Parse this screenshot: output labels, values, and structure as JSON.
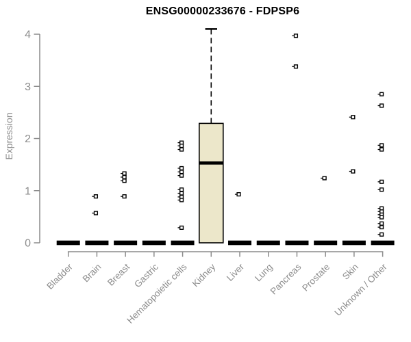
{
  "window": {
    "background": "#ffffff"
  },
  "chart_data": {
    "type": "boxplot",
    "title": "ENSG00000233676 - FDPSP6",
    "xlabel": "",
    "ylabel": "Expression",
    "ylim": [
      0,
      4.12
    ],
    "yticks": [
      0,
      1,
      2,
      3,
      4
    ],
    "grid": false,
    "legend": "none",
    "marker": "open-square",
    "categories": [
      "Bladder",
      "Brain",
      "Breast",
      "Gastric",
      "Hematopoietic cells",
      "Kidney",
      "Liver",
      "Lung",
      "Pancreas",
      "Prostate",
      "Skin",
      "Unknown / Other"
    ],
    "boxes": [
      {
        "category": "Bladder",
        "min": 0,
        "q1": 0,
        "median": 0,
        "q3": 0,
        "max": 0
      },
      {
        "category": "Brain",
        "min": 0,
        "q1": 0,
        "median": 0,
        "q3": 0,
        "max": 0
      },
      {
        "category": "Breast",
        "min": 0,
        "q1": 0,
        "median": 0,
        "q3": 0,
        "max": 0
      },
      {
        "category": "Gastric",
        "min": 0,
        "q1": 0,
        "median": 0,
        "q3": 0,
        "max": 0
      },
      {
        "category": "Hematopoietic cells",
        "min": 0,
        "q1": 0,
        "median": 0,
        "q3": 0,
        "max": 0
      },
      {
        "category": "Kidney",
        "min": 0,
        "q1": 0,
        "median": 1.53,
        "q3": 2.29,
        "max": 4.1
      },
      {
        "category": "Liver",
        "min": 0,
        "q1": 0,
        "median": 0,
        "q3": 0,
        "max": 0
      },
      {
        "category": "Lung",
        "min": 0,
        "q1": 0,
        "median": 0,
        "q3": 0,
        "max": 0
      },
      {
        "category": "Pancreas",
        "min": 0,
        "q1": 0,
        "median": 0,
        "q3": 0,
        "max": 0
      },
      {
        "category": "Prostate",
        "min": 0,
        "q1": 0,
        "median": 0,
        "q3": 0,
        "max": 0
      },
      {
        "category": "Skin",
        "min": 0,
        "q1": 0,
        "median": 0,
        "q3": 0,
        "max": 0
      },
      {
        "category": "Unknown / Other",
        "min": 0,
        "q1": 0,
        "median": 0,
        "q3": 0,
        "max": 0
      }
    ],
    "points": [
      {
        "category": "Brain",
        "values": [
          0.89,
          0.57
        ]
      },
      {
        "category": "Breast",
        "values": [
          1.33,
          1.26,
          1.19,
          0.89
        ]
      },
      {
        "category": "Hematopoietic cells",
        "values": [
          1.92,
          1.86,
          1.79,
          1.43,
          1.36,
          1.29,
          1.02,
          0.95,
          0.88,
          0.82,
          0.29
        ]
      },
      {
        "category": "Liver",
        "values": [
          0.93
        ]
      },
      {
        "category": "Pancreas",
        "values": [
          3.97,
          3.38
        ]
      },
      {
        "category": "Prostate",
        "values": [
          1.24
        ]
      },
      {
        "category": "Skin",
        "values": [
          2.41,
          1.37
        ]
      },
      {
        "category": "Unknown / Other",
        "values": [
          2.85,
          2.63,
          1.87,
          1.79,
          1.17,
          1.02,
          0.66,
          0.6,
          0.54,
          0.49,
          0.37,
          0.3,
          0.16
        ]
      }
    ],
    "colors": {
      "box_fill": "#ece7ca",
      "box_border": "#000000",
      "median": "#000000",
      "whisker": "#000000",
      "point": "#000000",
      "axis": "#8c8c8c",
      "title": "#000000",
      "background": "#ffffff"
    }
  }
}
